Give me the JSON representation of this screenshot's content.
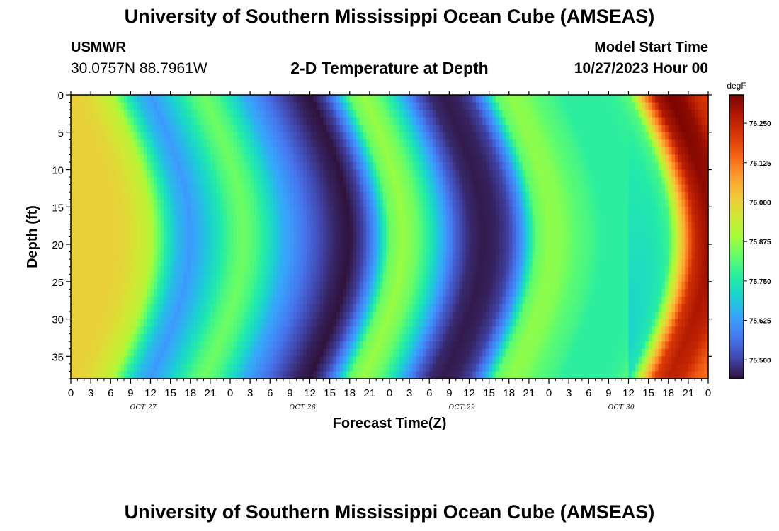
{
  "header": {
    "title": "University of Southern Mississippi Ocean Cube (AMSEAS)",
    "station": "USMWR",
    "coords": "30.0757N  88.7961W",
    "subtitle": "2-D Temperature at Depth",
    "model_start_label": "Model Start Time",
    "model_start_value": "10/27/2023 Hour 00"
  },
  "footer": {
    "title": "University of Southern Mississippi Ocean Cube (AMSEAS)"
  },
  "chart_data": {
    "type": "heatmap",
    "title": "2-D Temperature at Depth",
    "xlabel": "Forecast Time(Z)",
    "ylabel": "Depth (ft)",
    "x_hours_range": [
      0,
      96
    ],
    "x_tick_labels": [
      "0",
      "3",
      "6",
      "9",
      "12",
      "15",
      "18",
      "21",
      "0",
      "3",
      "6",
      "9",
      "12",
      "15",
      "18",
      "21",
      "0",
      "3",
      "6",
      "9",
      "12",
      "15",
      "18",
      "21",
      "0",
      "3",
      "6",
      "9",
      "12",
      "15",
      "18",
      "21",
      "0"
    ],
    "day_labels": [
      "OCT 27",
      "OCT 28",
      "OCT 29",
      "OCT 30"
    ],
    "ylim": [
      0,
      38
    ],
    "y_ticks": [
      0,
      5,
      10,
      15,
      20,
      25,
      30,
      35
    ],
    "y_inverted": true,
    "colorbar": {
      "unit": "degF",
      "range": [
        75.44,
        76.34
      ],
      "ticks": [
        "76.250",
        "76.125",
        "76.000",
        "75.875",
        "75.750",
        "75.625",
        "75.500"
      ],
      "tick_values": [
        76.25,
        76.125,
        76.0,
        75.875,
        75.75,
        75.625,
        75.5
      ],
      "colormap": [
        "#30123b",
        "#4145ab",
        "#4675ed",
        "#39a2fc",
        "#1bcfd4",
        "#24eca6",
        "#61fc6c",
        "#a4fc3b",
        "#d1e834",
        "#f3c63a",
        "#fe9b2d",
        "#f36315",
        "#d93806",
        "#b11901",
        "#7a0402"
      ]
    },
    "surface_profile_hours": [
      0,
      2,
      4,
      6,
      8,
      10,
      12,
      14,
      16,
      18,
      20,
      22,
      24,
      26,
      28,
      30,
      32,
      34,
      36,
      38,
      40,
      42,
      44,
      46,
      48,
      50,
      52,
      54,
      56,
      58,
      60,
      62,
      64,
      66,
      68,
      70,
      72,
      74,
      76,
      78,
      80,
      82,
      84,
      86,
      88,
      90,
      92,
      94,
      96
    ],
    "surface_profile_degF": [
      76.0,
      75.99,
      75.96,
      75.92,
      75.78,
      75.67,
      75.62,
      75.67,
      75.73,
      75.8,
      75.84,
      75.8,
      75.73,
      75.65,
      75.6,
      75.55,
      75.5,
      75.46,
      75.44,
      75.5,
      75.63,
      75.83,
      75.88,
      75.84,
      75.76,
      75.65,
      75.54,
      75.47,
      75.45,
      75.46,
      75.5,
      75.62,
      75.82,
      75.87,
      75.86,
      75.82,
      75.8,
      75.77,
      75.77,
      75.77,
      75.77,
      75.78,
      75.82,
      76.05,
      76.28,
      76.34,
      76.32,
      76.24,
      76.2
    ]
  }
}
